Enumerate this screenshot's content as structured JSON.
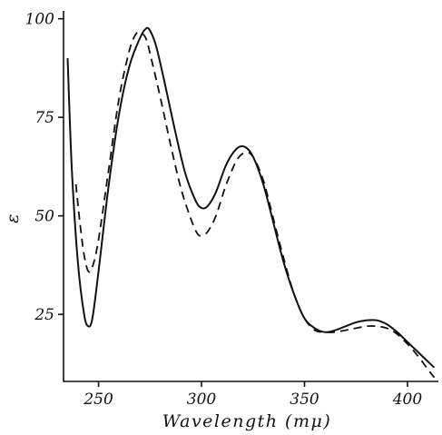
{
  "chart_data": {
    "type": "line",
    "title": "",
    "xlabel": "Wavelength (mμ)",
    "ylabel": "ε",
    "xlim": [
      233,
      415
    ],
    "ylim": [
      8,
      102
    ],
    "x_ticks": [
      250,
      300,
      350,
      400
    ],
    "x_tick_labels": [
      "250",
      "300",
      "350",
      "400"
    ],
    "y_ticks": [
      25,
      50,
      75,
      100
    ],
    "y_tick_labels": [
      "25",
      "50",
      "75",
      "100"
    ],
    "grid": false,
    "legend": "none",
    "series": [
      {
        "style": "solid",
        "x": [
          235,
          237,
          240,
          243,
          245,
          247,
          250,
          255,
          260,
          265,
          270,
          273,
          275,
          278,
          282,
          287,
          292,
          297,
          300,
          303,
          307,
          312,
          317,
          321,
          325,
          330,
          335,
          340,
          345,
          350,
          355,
          360,
          365,
          370,
          375,
          380,
          385,
          390,
          395,
          400,
          405,
          410,
          413
        ],
        "y": [
          90,
          62,
          38,
          25,
          22,
          24,
          36,
          58,
          76,
          88,
          95,
          97.5,
          97,
          93,
          84,
          72,
          61,
          54,
          52,
          52.5,
          56,
          63,
          67,
          67.5,
          65,
          58,
          48,
          38,
          30,
          24,
          21.5,
          20.5,
          21,
          22,
          23,
          23.5,
          23.5,
          22.5,
          20.5,
          18,
          15.5,
          13,
          11.5
        ]
      },
      {
        "style": "dashed",
        "x": [
          239,
          241,
          243,
          245,
          247,
          250,
          255,
          260,
          265,
          268,
          270,
          273,
          276,
          280,
          285,
          290,
          295,
          298,
          300,
          303,
          307,
          312,
          317,
          321,
          325,
          330,
          335,
          340,
          345,
          350,
          355,
          360,
          365,
          370,
          375,
          380,
          385,
          390,
          395,
          400,
          405,
          410,
          413
        ],
        "y": [
          58,
          48,
          40,
          36,
          37,
          44,
          62,
          80,
          92,
          96,
          96.5,
          95,
          89,
          80,
          68,
          57,
          49,
          45.5,
          45,
          46,
          50,
          58,
          64,
          66,
          65,
          59,
          49,
          39,
          30,
          24,
          21,
          20.5,
          20.5,
          21,
          21.5,
          22,
          22,
          21.5,
          20,
          17.5,
          14.5,
          11,
          9
        ]
      }
    ]
  }
}
